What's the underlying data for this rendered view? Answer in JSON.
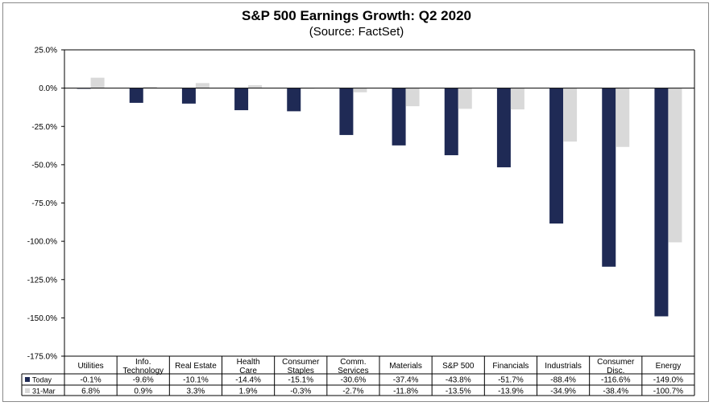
{
  "chart_data": {
    "type": "bar",
    "title": "S&P 500 Earnings Growth: Q2 2020",
    "subtitle": "(Source: FactSet)",
    "categories": [
      [
        "Utilities"
      ],
      [
        "Info.",
        "Technology"
      ],
      [
        "Real Estate"
      ],
      [
        "Health",
        "Care"
      ],
      [
        "Consumer",
        "Staples"
      ],
      [
        "Comm.",
        "Services"
      ],
      [
        "Materials"
      ],
      [
        "S&P 500"
      ],
      [
        "Financials"
      ],
      [
        "Industrials"
      ],
      [
        "Consumer",
        "Disc."
      ],
      [
        "Energy"
      ]
    ],
    "series": [
      {
        "name": "Today",
        "color": "#1f2a55",
        "values": [
          -0.1,
          -9.6,
          -10.1,
          -14.4,
          -15.1,
          -30.6,
          -37.4,
          -43.8,
          -51.7,
          -88.4,
          -116.6,
          -149.0
        ],
        "labels": [
          "-0.1%",
          "-9.6%",
          "-10.1%",
          "-14.4%",
          "-15.1%",
          "-30.6%",
          "-37.4%",
          "-43.8%",
          "-51.7%",
          "-88.4%",
          "-116.6%",
          "-149.0%"
        ]
      },
      {
        "name": "31-Mar",
        "color": "#d9d9d9",
        "values": [
          6.8,
          0.9,
          3.3,
          1.9,
          -0.3,
          -2.7,
          -11.8,
          -13.5,
          -13.9,
          -34.9,
          -38.4,
          -100.7
        ],
        "labels": [
          "6.8%",
          "0.9%",
          "3.3%",
          "1.9%",
          "-0.3%",
          "-2.7%",
          "-11.8%",
          "-13.5%",
          "-13.9%",
          "-34.9%",
          "-38.4%",
          "-100.7%"
        ]
      }
    ],
    "yticks": [
      25,
      0,
      -25,
      -50,
      -75,
      -100,
      -125,
      -150,
      -175
    ],
    "ytick_labels": [
      "25.0%",
      "0.0%",
      "-25.0%",
      "-50.0%",
      "-75.0%",
      "-100.0%",
      "-125.0%",
      "-150.0%",
      "-175.0%"
    ],
    "ylim": [
      -175,
      25
    ],
    "grid": false,
    "legend": "data-table"
  }
}
